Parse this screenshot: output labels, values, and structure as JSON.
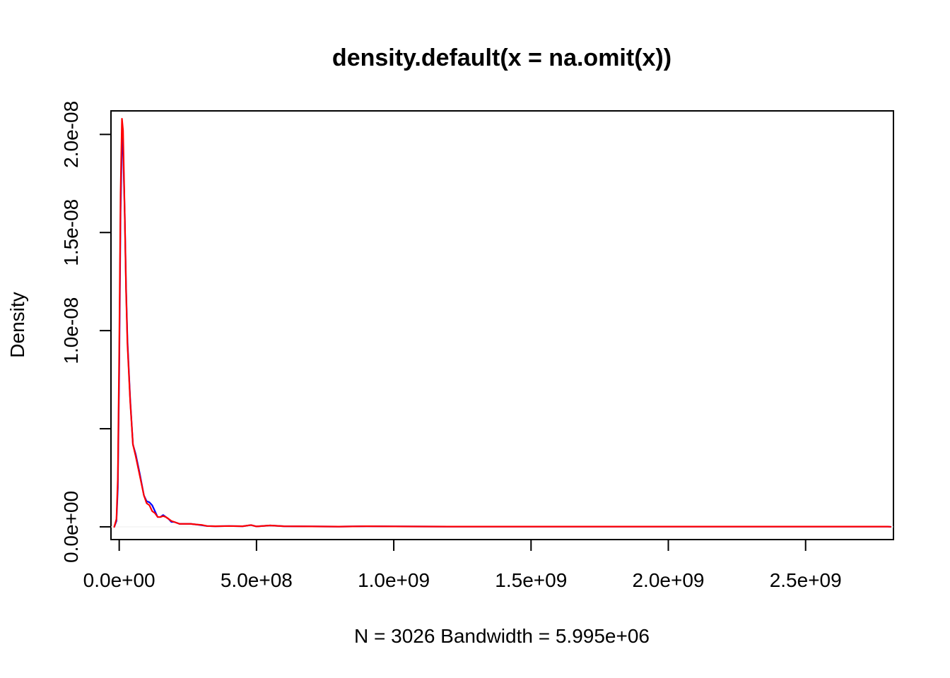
{
  "chart_data": {
    "type": "line",
    "title": "density.default(x = na.omit(x))",
    "xlabel": "N = 3026   Bandwidth = 5.995e+06",
    "ylabel": "Density",
    "xlim": [
      -30000000,
      2820000000
    ],
    "ylim": [
      -6.5e-10,
      2.12e-08
    ],
    "x_ticks": [
      {
        "value": 0,
        "label": "0.0e+00"
      },
      {
        "value": 500000000,
        "label": "5.0e+08"
      },
      {
        "value": 1000000000,
        "label": "1.0e+09"
      },
      {
        "value": 1500000000,
        "label": "1.5e+09"
      },
      {
        "value": 2000000000,
        "label": "2.0e+09"
      },
      {
        "value": 2500000000,
        "label": "2.5e+09"
      }
    ],
    "y_ticks": [
      {
        "value": 0,
        "label": "0.0e+00"
      },
      {
        "value": 5e-09,
        "label": ""
      },
      {
        "value": 1e-08,
        "label": "1.0e-08"
      },
      {
        "value": 1.5e-08,
        "label": "1.5e-08"
      },
      {
        "value": 2e-08,
        "label": "2.0e-08"
      }
    ],
    "grid": false,
    "series": [
      {
        "color": "#0000ff",
        "x": [
          -18000000,
          -10000000,
          -5000000,
          0,
          5000000,
          10000000,
          14000000,
          20000000,
          25000000,
          30000000,
          40000000,
          50000000,
          60000000,
          75000000,
          90000000,
          100000000,
          110000000,
          120000000,
          130000000,
          140000000,
          150000000,
          160000000,
          170000000,
          180000000,
          190000000,
          200000000,
          210000000,
          220000000,
          240000000,
          260000000,
          280000000,
          300000000,
          320000000,
          350000000,
          400000000,
          450000000,
          480000000,
          500000000,
          550000000,
          600000000,
          700000000,
          800000000,
          900000000,
          1000000000,
          1200000000,
          1400000000,
          1600000000,
          1800000000,
          2000000000,
          2200000000,
          2400000000,
          2600000000,
          2800000000,
          2810000000
        ],
        "y": [
          0,
          3e-10,
          2e-09,
          8e-09,
          1.6e-08,
          1.98e-08,
          1.94e-08,
          1.6e-08,
          1.22e-08,
          9.5e-09,
          6.5e-09,
          4.2e-09,
          3.7e-09,
          2.7e-09,
          1.6e-09,
          1.3e-09,
          1.25e-09,
          1.1e-09,
          8e-10,
          5e-10,
          5e-10,
          6e-10,
          5e-10,
          4e-10,
          2.5e-10,
          2.5e-10,
          2e-10,
          1.5e-10,
          1.5e-10,
          1.5e-10,
          1.2e-10,
          8e-11,
          4e-11,
          3e-11,
          4e-11,
          3e-11,
          9e-11,
          2e-11,
          7e-11,
          3e-11,
          2e-11,
          1e-11,
          3e-11,
          2e-11,
          1e-11,
          1e-11,
          1e-11,
          1e-11,
          1e-11,
          1e-11,
          1e-11,
          1e-11,
          1e-11,
          0
        ]
      },
      {
        "color": "#ff0000",
        "x": [
          -18000000,
          -10000000,
          -5000000,
          0,
          5000000,
          10000000,
          14000000,
          20000000,
          25000000,
          30000000,
          40000000,
          50000000,
          60000000,
          75000000,
          90000000,
          100000000,
          110000000,
          120000000,
          130000000,
          140000000,
          150000000,
          160000000,
          170000000,
          180000000,
          190000000,
          200000000,
          210000000,
          220000000,
          240000000,
          260000000,
          280000000,
          300000000,
          320000000,
          350000000,
          400000000,
          450000000,
          480000000,
          500000000,
          550000000,
          600000000,
          700000000,
          800000000,
          900000000,
          1000000000,
          1200000000,
          1400000000,
          1600000000,
          1800000000,
          2000000000,
          2200000000,
          2400000000,
          2600000000,
          2800000000,
          2810000000
        ],
        "y": [
          0,
          4e-10,
          2.5e-09,
          9e-09,
          1.7e-08,
          2.08e-08,
          2.02e-08,
          1.6e-08,
          1.2e-08,
          9.3e-09,
          6.4e-09,
          4.2e-09,
          3.6e-09,
          2.6e-09,
          1.6e-09,
          1.2e-09,
          1.1e-09,
          8e-10,
          7e-10,
          5e-10,
          5e-10,
          5.5e-10,
          5e-10,
          4e-10,
          3e-10,
          2.5e-10,
          2e-10,
          1.5e-10,
          1.5e-10,
          1.5e-10,
          1.2e-10,
          1e-10,
          4e-11,
          3e-11,
          4e-11,
          3e-11,
          9e-11,
          2e-11,
          7e-11,
          3e-11,
          2e-11,
          1e-11,
          3e-11,
          2e-11,
          1e-11,
          1e-11,
          1e-11,
          1e-11,
          1e-11,
          1e-11,
          1e-11,
          1e-11,
          1e-11,
          0
        ]
      }
    ]
  }
}
